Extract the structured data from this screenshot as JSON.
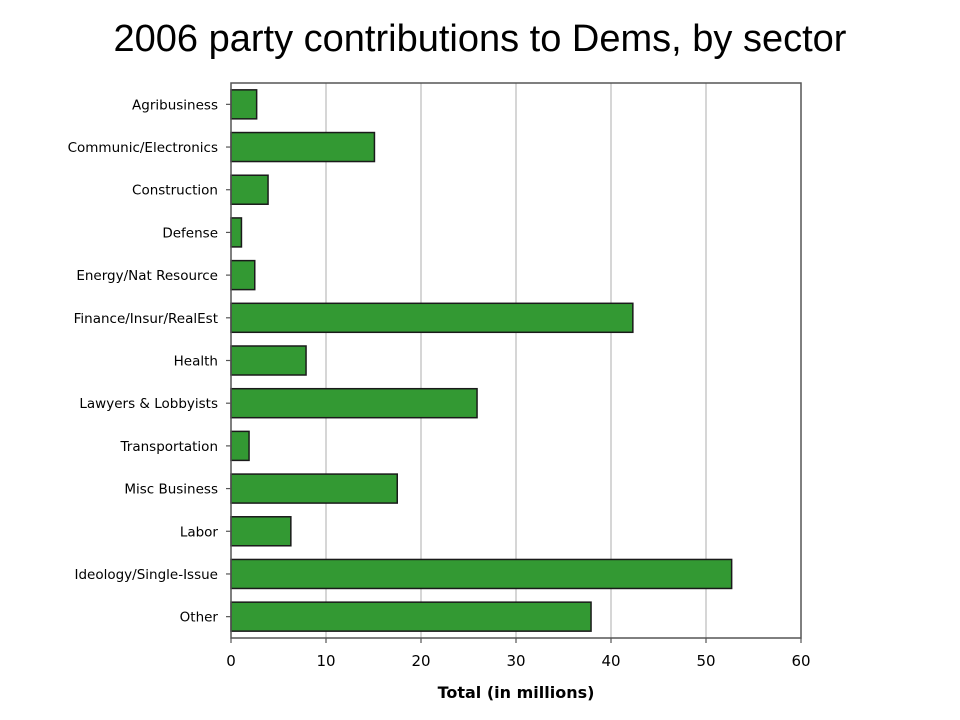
{
  "page": {
    "title": "2006 party contributions to Dems, by sector"
  },
  "chart_data": {
    "type": "bar",
    "orientation": "horizontal",
    "title": "2006 party contributions to Dems, by sector",
    "xlabel": "Total (in millions)",
    "ylabel": "",
    "xlim": [
      0,
      60
    ],
    "xticks": [
      0,
      10,
      20,
      30,
      40,
      50,
      60
    ],
    "grid": "vertical",
    "legend": "none",
    "bar_color": "#339933",
    "categories": [
      "Agribusiness",
      "Communic/Electronics",
      "Construction",
      "Defense",
      "Energy/Nat Resource",
      "Finance/Insur/RealEst",
      "Health",
      "Lawyers & Lobbyists",
      "Transportation",
      "Misc Business",
      "Labor",
      "Ideology/Single-Issue",
      "Other"
    ],
    "values": [
      2.7,
      15.1,
      3.9,
      1.1,
      2.5,
      42.3,
      7.9,
      25.9,
      1.9,
      17.5,
      6.3,
      52.7,
      37.9
    ]
  }
}
